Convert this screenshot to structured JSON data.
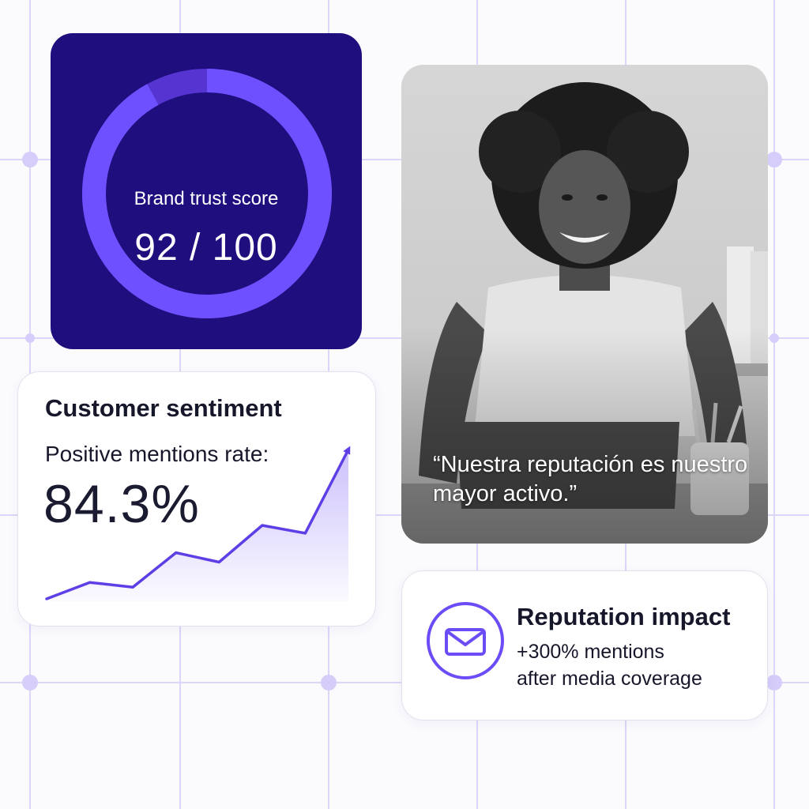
{
  "colors": {
    "accent": "#6b4cf6",
    "deep_indigo": "#1f0e7e",
    "grid_line": "#ddd6fb",
    "grid_dot": "#d7cdfb"
  },
  "trust_score": {
    "label": "Brand trust score",
    "value_text": "92 / 100",
    "score": 92,
    "max": 100
  },
  "sentiment": {
    "title": "Customer sentiment",
    "subtitle": "Positive mentions rate:",
    "value_text": "84.3%",
    "trend_values": [
      1,
      22,
      16,
      60,
      48,
      95,
      85,
      192
    ]
  },
  "testimonial": {
    "quote": "“Nuestra reputación es nuestro mayor activo.”",
    "photo": "smiling-woman-at-desk-photo"
  },
  "impact": {
    "icon": "envelope-icon",
    "title": "Reputation impact",
    "line1": "+300% mentions",
    "line2": "after media coverage"
  }
}
